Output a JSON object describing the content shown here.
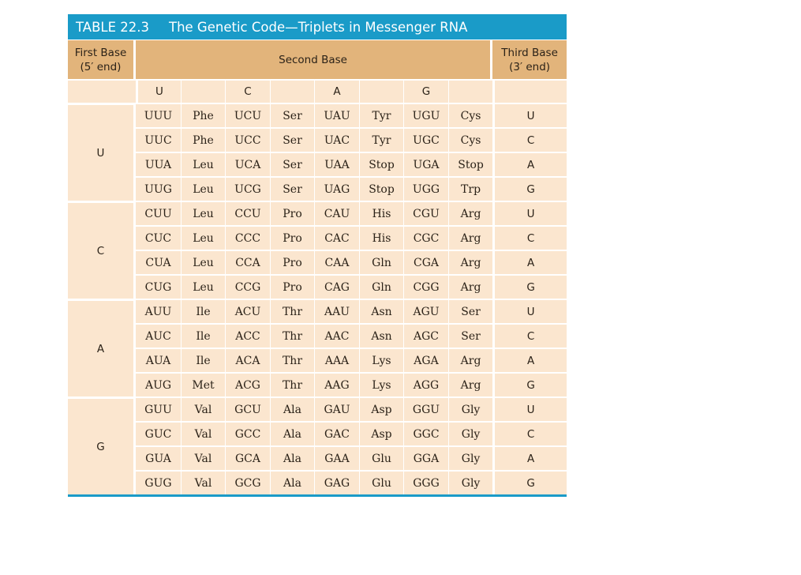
{
  "table": {
    "number": "TABLE 22.3",
    "title": "The Genetic Code—Triplets in Messenger RNA",
    "header": {
      "first_base_line1": "First Base",
      "first_base_line2": "(5′ end)",
      "second_base": "Second Base",
      "third_base_line1": "Third Base",
      "third_base_line2": "(3′ end)"
    },
    "second_base_letters": [
      "U",
      "C",
      "A",
      "G"
    ],
    "groups": [
      {
        "first": "U",
        "rows": [
          {
            "codons": [
              "UUU",
              "Phe",
              "UCU",
              "Ser",
              "UAU",
              "Tyr",
              "UGU",
              "Cys"
            ],
            "third": "U"
          },
          {
            "codons": [
              "UUC",
              "Phe",
              "UCC",
              "Ser",
              "UAC",
              "Tyr",
              "UGC",
              "Cys"
            ],
            "third": "C"
          },
          {
            "codons": [
              "UUA",
              "Leu",
              "UCA",
              "Ser",
              "UAA",
              "Stop",
              "UGA",
              "Stop"
            ],
            "third": "A"
          },
          {
            "codons": [
              "UUG",
              "Leu",
              "UCG",
              "Ser",
              "UAG",
              "Stop",
              "UGG",
              "Trp"
            ],
            "third": "G"
          }
        ]
      },
      {
        "first": "C",
        "rows": [
          {
            "codons": [
              "CUU",
              "Leu",
              "CCU",
              "Pro",
              "CAU",
              "His",
              "CGU",
              "Arg"
            ],
            "third": "U"
          },
          {
            "codons": [
              "CUC",
              "Leu",
              "CCC",
              "Pro",
              "CAC",
              "His",
              "CGC",
              "Arg"
            ],
            "third": "C"
          },
          {
            "codons": [
              "CUA",
              "Leu",
              "CCA",
              "Pro",
              "CAA",
              "Gln",
              "CGA",
              "Arg"
            ],
            "third": "A"
          },
          {
            "codons": [
              "CUG",
              "Leu",
              "CCG",
              "Pro",
              "CAG",
              "Gln",
              "CGG",
              "Arg"
            ],
            "third": "G"
          }
        ]
      },
      {
        "first": "A",
        "rows": [
          {
            "codons": [
              "AUU",
              "Ile",
              "ACU",
              "Thr",
              "AAU",
              "Asn",
              "AGU",
              "Ser"
            ],
            "third": "U"
          },
          {
            "codons": [
              "AUC",
              "Ile",
              "ACC",
              "Thr",
              "AAC",
              "Asn",
              "AGC",
              "Ser"
            ],
            "third": "C"
          },
          {
            "codons": [
              "AUA",
              "Ile",
              "ACA",
              "Thr",
              "AAA",
              "Lys",
              "AGA",
              "Arg"
            ],
            "third": "A"
          },
          {
            "codons": [
              "AUG",
              "Met",
              "ACG",
              "Thr",
              "AAG",
              "Lys",
              "AGG",
              "Arg"
            ],
            "third": "G"
          }
        ]
      },
      {
        "first": "G",
        "rows": [
          {
            "codons": [
              "GUU",
              "Val",
              "GCU",
              "Ala",
              "GAU",
              "Asp",
              "GGU",
              "Gly"
            ],
            "third": "U"
          },
          {
            "codons": [
              "GUC",
              "Val",
              "GCC",
              "Ala",
              "GAC",
              "Asp",
              "GGC",
              "Gly"
            ],
            "third": "C"
          },
          {
            "codons": [
              "GUA",
              "Val",
              "GCA",
              "Ala",
              "GAA",
              "Glu",
              "GGA",
              "Gly"
            ],
            "third": "A"
          },
          {
            "codons": [
              "GUG",
              "Val",
              "GCG",
              "Ala",
              "GAG",
              "Glu",
              "GGG",
              "Gly"
            ],
            "third": "G"
          }
        ]
      }
    ]
  },
  "colors": {
    "title_bar": "#1a9bc8",
    "header_bg": "#e2b47b",
    "body_bg": "#fbe6cf"
  }
}
